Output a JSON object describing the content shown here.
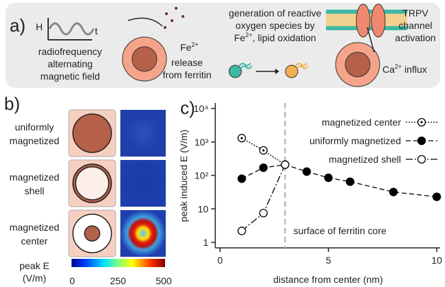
{
  "panel_a": {
    "label": "a)",
    "h_label": "H",
    "t_label": "t",
    "rf_text": [
      "radiofrequency",
      "alternating",
      "magnetic field"
    ],
    "fe_text": {
      "ion": "Fe",
      "charge": "2+",
      "lines": [
        "release",
        "from ferritin"
      ]
    },
    "ros_text": {
      "lines": [
        "generation of reactive",
        "oxygen species by"
      ],
      "ion": "Fe",
      "charge": "2+",
      "tail": ", lipid oxidation"
    },
    "trpv_text": [
      "TRPV",
      "channel",
      "activation"
    ],
    "ca_text": {
      "ion": "Ca",
      "charge": "2+",
      "tail": " influx"
    }
  },
  "panel_b": {
    "label": "b)",
    "rows": [
      [
        "uniformly",
        "magnetized"
      ],
      [
        "magnetized",
        "shell"
      ],
      [
        "magnetized",
        "center"
      ]
    ],
    "colorbar": {
      "title": [
        "peak E",
        "(V/m)"
      ],
      "ticks": [
        0,
        250,
        500
      ]
    }
  },
  "chart_data": {
    "type": "line",
    "panel_label": "c)",
    "xlabel": "distance from center (nm)",
    "ylabel": "peak induced E (V/m)",
    "xlim": [
      0,
      10
    ],
    "xticks": [
      0,
      5,
      10
    ],
    "ylim": [
      1,
      10000
    ],
    "log_y": true,
    "yticks": [
      1,
      10,
      {
        "value": 100,
        "label": "10²"
      },
      {
        "value": 1000,
        "label": "10³"
      },
      {
        "value": 10000,
        "label": "10⁴"
      }
    ],
    "annotation": {
      "text": "surface of ferritin core",
      "x": 3
    },
    "legend": "upper right",
    "series": [
      {
        "name": "magnetized center",
        "color": "#000000",
        "line_style": "dotted",
        "marker": "dot-in-circle",
        "x": [
          1,
          2,
          3
        ],
        "values": [
          1300,
          560,
          210
        ]
      },
      {
        "name": "uniformly magnetized",
        "color": "#000000",
        "line_style": "dashed",
        "marker": "filled",
        "x": [
          1,
          2,
          3,
          4,
          5,
          6,
          8,
          10
        ],
        "values": [
          80,
          170,
          210,
          130,
          85,
          65,
          32,
          23
        ]
      },
      {
        "name": "magnetized shell",
        "color": "#000000",
        "line_style": "dashdot",
        "marker": "hollow",
        "x": [
          1,
          2,
          3
        ],
        "values": [
          2.2,
          7.5,
          210
        ]
      }
    ]
  }
}
